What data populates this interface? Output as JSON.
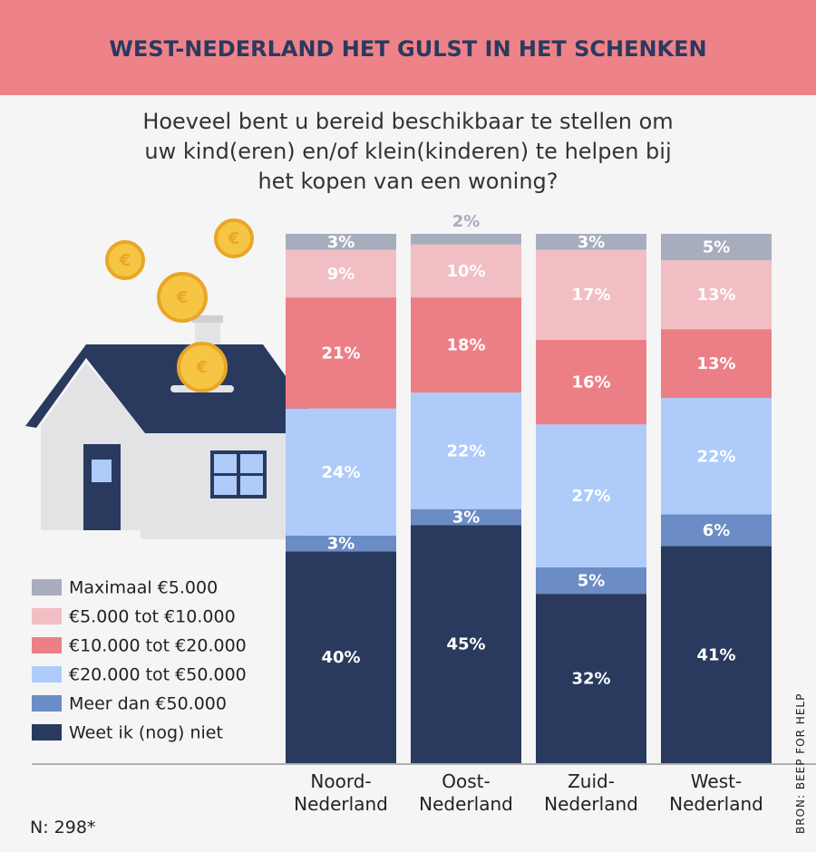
{
  "header": {
    "title": "WEST-NEDERLAND HET GULST IN HET SCHENKEN"
  },
  "chart_data": {
    "type": "stacked-bar",
    "subtitle": "Hoeveel bent u bereid beschikbaar te stellen om\nuw kind(eren) en/of klein(kinderen) te helpen bij\nhet kopen van een woning?",
    "categories": [
      "Noord-\nNederland",
      "Oost-\nNederland",
      "Zuid-\nNederland",
      "West-\nNederland"
    ],
    "ylim": [
      0,
      100
    ],
    "series": [
      {
        "name": "Weet ik (nog) niet",
        "color": "#293a5e",
        "values": [
          40,
          45,
          32,
          41
        ],
        "value_labels": [
          "40%",
          "45%",
          "32%",
          "41%"
        ]
      },
      {
        "name": "Meer dan €50.000",
        "color": "#6b8cc4",
        "values": [
          3,
          3,
          5,
          6
        ],
        "value_labels": [
          "3%",
          "3%",
          "5%",
          "6%"
        ]
      },
      {
        "name": "€20.000 tot €50.000",
        "color": "#aecbfa",
        "values": [
          24,
          22,
          27,
          22
        ],
        "value_labels": [
          "24%",
          "22%",
          "27%",
          "22%"
        ]
      },
      {
        "name": "€10.000 tot €20.000",
        "color": "#ec7f86",
        "values": [
          21,
          18,
          16,
          13
        ],
        "value_labels": [
          "21%",
          "18%",
          "16%",
          "13%"
        ]
      },
      {
        "name": "€5.000 tot €10.000",
        "color": "#f1bec4",
        "values": [
          9,
          10,
          17,
          13
        ],
        "value_labels": [
          "9%",
          "10%",
          "17%",
          "13%"
        ]
      },
      {
        "name": "Maximaal €5.000",
        "color": "#a8adbe",
        "values": [
          3,
          2,
          3,
          5
        ],
        "value_labels": [
          "3%",
          "2%",
          "3%",
          "5%"
        ]
      }
    ],
    "legend_order": "reversed",
    "footnote": "N: 298*",
    "source": "BRON: BEEP FOR HELP"
  }
}
